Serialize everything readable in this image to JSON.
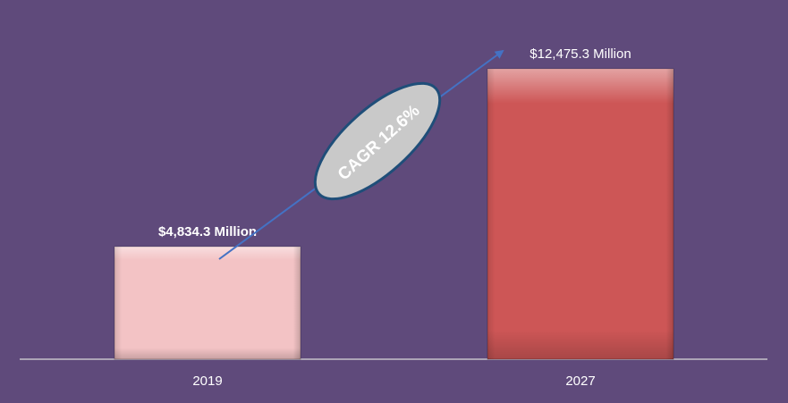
{
  "chart_data": {
    "type": "bar",
    "categories": [
      "2019",
      "2027"
    ],
    "values": [
      4834.3,
      12475.3
    ],
    "value_labels": [
      "$4,834.3 Million",
      "$12,475.3 Million"
    ],
    "annotation": "CAGR 12.6%",
    "title": "",
    "xlabel": "",
    "ylabel": "",
    "ylim": [
      0,
      12475.3
    ],
    "grid": false,
    "legend": "none"
  },
  "colors": {
    "background": "#5f4a7b",
    "bar_2019": "#f3c3c5",
    "bar_2027": "#cd5656",
    "arrow": "#4472c4",
    "ellipse_fill": "#c9c9c9",
    "ellipse_border": "#1f4e79",
    "text": "#ffffff",
    "axis": "#d9d9d9"
  }
}
